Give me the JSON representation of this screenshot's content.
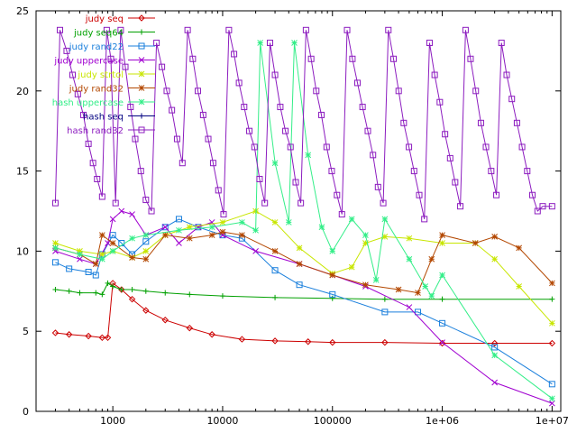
{
  "chart_data": {
    "type": "line",
    "title": "",
    "xlabel": "",
    "ylabel": "",
    "xscale": "log",
    "xlim": [
      200,
      12000000
    ],
    "ylim": [
      0,
      25
    ],
    "grid": false,
    "legend_placement": "top-left",
    "y_ticks": [
      0,
      5,
      10,
      15,
      20,
      25
    ],
    "x_ticks": [
      {
        "value": 1000,
        "label": "1000"
      },
      {
        "value": 10000,
        "label": "10000"
      },
      {
        "value": 100000,
        "label": "100000"
      },
      {
        "value": 1000000,
        "label": "1e+06"
      },
      {
        "value": 10000000,
        "label": "1e+07"
      }
    ],
    "series": [
      {
        "name": "judy seq",
        "color": "#cc0000",
        "marker": "diamond",
        "x": [
          300,
          400,
          600,
          800,
          900,
          1000,
          1200,
          1500,
          2000,
          3000,
          5000,
          8000,
          15000,
          30000,
          60000,
          100000,
          300000,
          1000000,
          3000000,
          10000000
        ],
        "y": [
          4.9,
          4.8,
          4.7,
          4.6,
          4.6,
          8.0,
          7.6,
          7.0,
          6.3,
          5.7,
          5.2,
          4.8,
          4.5,
          4.4,
          4.35,
          4.3,
          4.3,
          4.25,
          4.25,
          4.25
        ]
      },
      {
        "name": "judy seq64",
        "color": "#00a000",
        "marker": "plus",
        "x": [
          300,
          400,
          500,
          700,
          800,
          900,
          1000,
          1200,
          1500,
          2000,
          3000,
          5000,
          10000,
          30000,
          100000,
          300000,
          1000000,
          10000000
        ],
        "y": [
          7.6,
          7.5,
          7.4,
          7.4,
          7.3,
          8.0,
          7.8,
          7.6,
          7.6,
          7.5,
          7.4,
          7.3,
          7.2,
          7.1,
          7.05,
          7.0,
          7.0,
          7.0
        ]
      },
      {
        "name": "judy rand22",
        "color": "#1a7fdc",
        "marker": "square",
        "x": [
          300,
          400,
          600,
          700,
          800,
          1000,
          1200,
          1500,
          2000,
          3000,
          4000,
          6000,
          10000,
          15000,
          30000,
          50000,
          100000,
          300000,
          600000,
          1000000,
          3000000,
          10000000
        ],
        "y": [
          9.3,
          8.9,
          8.7,
          8.5,
          9.8,
          11.0,
          10.5,
          9.8,
          10.6,
          11.5,
          12.0,
          11.5,
          11.0,
          10.8,
          8.8,
          7.9,
          7.3,
          6.2,
          6.2,
          5.5,
          4.0,
          1.7
        ]
      },
      {
        "name": "judy uppercase",
        "color": "#a000d0",
        "marker": "x",
        "x": [
          300,
          500,
          700,
          900,
          1000,
          1200,
          1500,
          2000,
          3000,
          4000,
          6000,
          8000,
          10000,
          20000,
          50000,
          100000,
          200000,
          500000,
          1000000,
          3000000,
          10000000
        ],
        "y": [
          10.0,
          9.5,
          9.2,
          10.5,
          12.0,
          12.5,
          12.3,
          11.0,
          11.5,
          10.5,
          11.5,
          11.8,
          11.0,
          10.0,
          9.2,
          8.5,
          7.8,
          6.5,
          4.3,
          1.8,
          0.5
        ]
      },
      {
        "name": "judy strtol",
        "color": "#c8e600",
        "marker": "star",
        "x": [
          300,
          500,
          800,
          1000,
          1500,
          2000,
          3000,
          5000,
          10000,
          20000,
          30000,
          50000,
          100000,
          150000,
          200000,
          300000,
          500000,
          1000000,
          2000000,
          3000000,
          5000000,
          10000000
        ],
        "y": [
          10.5,
          10.0,
          9.8,
          10.0,
          9.6,
          10.0,
          11.0,
          11.5,
          11.8,
          12.5,
          11.8,
          10.2,
          8.6,
          9.0,
          10.5,
          10.9,
          10.8,
          10.5,
          10.5,
          9.5,
          7.8,
          5.5
        ]
      },
      {
        "name": "judy rand32",
        "color": "#b34700",
        "marker": "asterisk",
        "x": [
          300,
          500,
          700,
          800,
          1000,
          1500,
          2000,
          3000,
          5000,
          8000,
          10000,
          15000,
          30000,
          50000,
          100000,
          200000,
          400000,
          600000,
          800000,
          1000000,
          2000000,
          3000000,
          5000000,
          10000000
        ],
        "y": [
          10.2,
          9.8,
          9.2,
          11.0,
          10.5,
          9.6,
          9.5,
          11.0,
          10.8,
          11.0,
          11.2,
          11.0,
          10.0,
          9.2,
          8.5,
          7.9,
          7.6,
          7.4,
          9.5,
          11.0,
          10.5,
          10.9,
          10.2,
          8.0
        ]
      },
      {
        "name": "hash uppercase",
        "color": "#33ee88",
        "marker": "star",
        "x": [
          300,
          500,
          800,
          1000,
          1500,
          2000,
          4000,
          8000,
          15000,
          20000,
          22000,
          30000,
          40000,
          45000,
          60000,
          80000,
          100000,
          150000,
          200000,
          250000,
          300000,
          500000,
          700000,
          800000,
          1000000,
          3000000,
          10000000
        ],
        "y": [
          10.2,
          9.8,
          9.5,
          10.0,
          10.8,
          11.0,
          11.3,
          11.5,
          11.8,
          11.3,
          23.0,
          15.5,
          11.8,
          23.0,
          16.0,
          11.5,
          10.0,
          12.0,
          11.0,
          8.2,
          12.0,
          9.5,
          7.8,
          7.2,
          8.5,
          3.5,
          0.8
        ]
      },
      {
        "name": "hash seq",
        "color": "#000080",
        "marker": "plus",
        "x": [],
        "y": []
      },
      {
        "name": "hash rand32",
        "color": "#8c1cbf",
        "marker": "box",
        "x": [
          300,
          330,
          380,
          430,
          480,
          540,
          600,
          660,
          720,
          800,
          880,
          960,
          1060,
          1180,
          1300,
          1450,
          1600,
          1800,
          2000,
          2250,
          2500,
          2800,
          3100,
          3450,
          3850,
          4300,
          4800,
          5350,
          5950,
          6650,
          7400,
          8200,
          9150,
          10200,
          11400,
          12700,
          14100,
          15700,
          17500,
          19500,
          21700,
          24200,
          27000,
          30000,
          33500,
          37300,
          41500,
          46300,
          51500,
          57400,
          64000,
          71200,
          79400,
          88500,
          98500,
          110000,
          122000,
          136000,
          152000,
          169000,
          188000,
          210000,
          234000,
          260000,
          290000,
          323000,
          360000,
          401000,
          446000,
          497000,
          554000,
          617000,
          687000,
          766000,
          853000,
          950000,
          1060000,
          1180000,
          1310000,
          1460000,
          1630000,
          1810000,
          2020000,
          2250000,
          2500000,
          2790000,
          3110000,
          3460000,
          3860000,
          4300000,
          4790000,
          5330000,
          5940000,
          6620000,
          7380000,
          8220000,
          10000000
        ],
        "y": [
          13.0,
          23.8,
          22.5,
          21.0,
          19.8,
          18.5,
          16.7,
          15.5,
          14.5,
          13.4,
          23.8,
          22.0,
          13.0,
          23.8,
          21.5,
          19.0,
          17.0,
          15.0,
          13.2,
          12.5,
          23.0,
          21.5,
          20.0,
          18.8,
          17.0,
          15.5,
          23.8,
          22.0,
          20.0,
          18.5,
          17.0,
          15.5,
          13.8,
          12.3,
          23.8,
          22.3,
          20.5,
          19.0,
          17.5,
          16.5,
          14.5,
          13.0,
          23.0,
          21.0,
          19.0,
          17.5,
          16.5,
          14.3,
          13.0,
          23.8,
          22.0,
          20.0,
          18.5,
          16.5,
          15.0,
          13.5,
          12.3,
          23.8,
          22.0,
          20.5,
          19.0,
          17.5,
          16.0,
          14.0,
          13.0,
          23.8,
          22.0,
          20.0,
          18.0,
          16.5,
          15.0,
          13.5,
          12.0,
          23.0,
          21.0,
          19.3,
          17.3,
          15.8,
          14.3,
          12.8,
          23.8,
          22.0,
          20.0,
          18.0,
          16.5,
          15.0,
          13.5,
          23.0,
          21.0,
          19.5,
          18.0,
          16.5,
          15.0,
          13.5,
          12.5,
          12.8,
          12.8
        ]
      }
    ]
  }
}
